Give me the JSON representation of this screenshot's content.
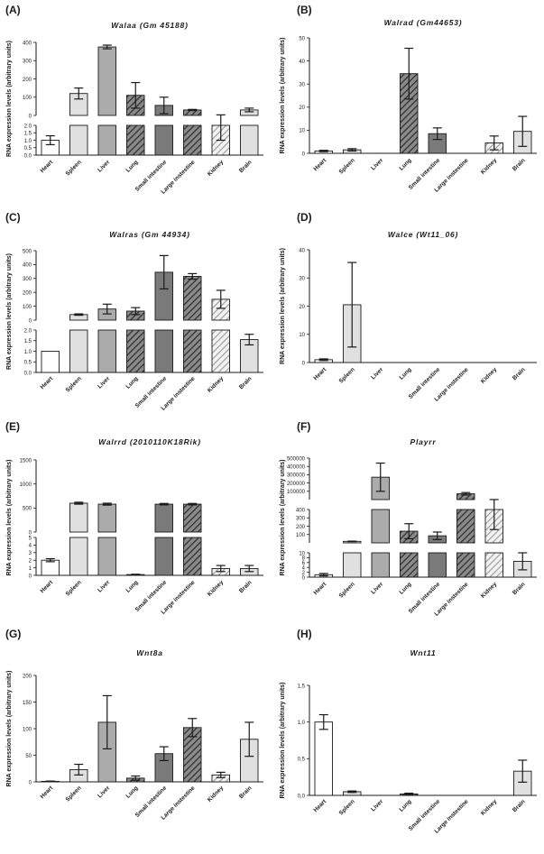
{
  "figure": {
    "panels": [
      "(A)",
      "(B)",
      "(C)",
      "(D)",
      "(E)",
      "(F)",
      "(G)",
      "(H)"
    ]
  },
  "chart_data": [
    {
      "panel": "(A)",
      "type": "bar",
      "title": "Walaa (Gm 45188)",
      "ylabel": "RNA expression levels (arbitrary units)",
      "categories": [
        "Heart",
        "Spleen",
        "Liver",
        "Lung",
        "Small intestine",
        "Large instestine",
        "Kidney",
        "Brain"
      ],
      "values": [
        1.0,
        120,
        375,
        110,
        55,
        30,
        2,
        30
      ],
      "errors": [
        0.3,
        30,
        10,
        70,
        45,
        3,
        1,
        10
      ],
      "patterns": [
        "white",
        "light",
        "mid",
        "hatch",
        "dark",
        "hatch",
        "hatchlight",
        "light"
      ],
      "axis_break": true,
      "upper": {
        "range": [
          0,
          400
        ],
        "ticks": [
          "0",
          "100",
          "200",
          "300",
          "400"
        ]
      },
      "lower": {
        "range": [
          0,
          2.0
        ],
        "ticks": [
          "0.0",
          "0.5",
          "1.0",
          "1.5",
          "2.0"
        ]
      }
    },
    {
      "panel": "(B)",
      "type": "bar",
      "title": "Walrad (Gm44653)",
      "ylabel": "RNA expression levels (arbitrary units)",
      "categories": [
        "Heart",
        "Spleen",
        "Liver",
        "Lung",
        "Small intestine",
        "Large instestine",
        "Kidney",
        "Brain"
      ],
      "values": [
        1.0,
        1.5,
        0,
        34.5,
        8.5,
        0,
        4.5,
        9.5
      ],
      "errors": [
        0.3,
        0.5,
        0,
        11,
        2.5,
        0,
        3,
        6.5
      ],
      "patterns": [
        "white",
        "light",
        "mid",
        "hatch",
        "dark",
        "hatch",
        "hatchlight",
        "light"
      ],
      "axis_break": false,
      "ylim": [
        0,
        50
      ],
      "yticks": [
        "0",
        "10",
        "20",
        "30",
        "40",
        "50"
      ]
    },
    {
      "panel": "(C)",
      "type": "bar",
      "title": "Walras (Gm 44934)",
      "ylabel": "RNA expression levels (arbitrary units)",
      "categories": [
        "Heart",
        "Spleen",
        "Liver",
        "Lung",
        "Small intestine",
        "Large instestine",
        "Kidney",
        "Brain"
      ],
      "values": [
        1.0,
        40,
        80,
        65,
        345,
        315,
        150,
        1.55
      ],
      "errors": [
        0,
        5,
        35,
        25,
        120,
        20,
        65,
        0.25
      ],
      "patterns": [
        "white",
        "light",
        "mid",
        "hatch",
        "dark",
        "hatch",
        "hatchlight",
        "light"
      ],
      "axis_break": true,
      "upper": {
        "range": [
          0,
          500
        ],
        "ticks": [
          "0",
          "100",
          "200",
          "300",
          "400",
          "500"
        ]
      },
      "lower": {
        "range": [
          0,
          2.0
        ],
        "ticks": [
          "0.0",
          "0.5",
          "1.0",
          "1.5",
          "2.0"
        ]
      }
    },
    {
      "panel": "(D)",
      "type": "bar",
      "title": "Walce (Wt11_06)",
      "ylabel": "RNA expression levels (arbitrary units)",
      "categories": [
        "Heart",
        "Spleen",
        "Liver",
        "Lung",
        "Small intestine",
        "Large instestine",
        "Kidney",
        "Brain"
      ],
      "values": [
        1.0,
        20.5,
        0,
        0,
        0,
        0,
        0,
        0
      ],
      "errors": [
        0.3,
        15,
        0,
        0,
        0,
        0,
        0,
        0
      ],
      "patterns": [
        "white",
        "light",
        "mid",
        "hatch",
        "dark",
        "hatch",
        "hatchlight",
        "light"
      ],
      "axis_break": false,
      "ylim": [
        0,
        40
      ],
      "yticks": [
        "0",
        "10",
        "20",
        "30",
        "40"
      ]
    },
    {
      "panel": "(E)",
      "type": "bar",
      "title": "Walrrd (2010110K18Rik)",
      "ylabel": "RNA expression levels (arbitrary units)",
      "categories": [
        "Heart",
        "Spleen",
        "Liver",
        "Lung",
        "Small intestine",
        "Large instestine",
        "Kidney",
        "Brain"
      ],
      "values": [
        2.0,
        600,
        580,
        0.1,
        580,
        580,
        0.9,
        0.9
      ],
      "errors": [
        0.2,
        20,
        20,
        0.05,
        15,
        15,
        0.4,
        0.4
      ],
      "patterns": [
        "white",
        "light",
        "mid",
        "hatch",
        "dark",
        "hatch",
        "hatchlight",
        "light"
      ],
      "axis_break": true,
      "upper": {
        "range": [
          0,
          1500
        ],
        "ticks": [
          "0",
          "500",
          "1000",
          "1500"
        ]
      },
      "lower": {
        "range": [
          0,
          5
        ],
        "ticks": [
          "0",
          "1",
          "2",
          "3",
          "4",
          "5"
        ]
      }
    },
    {
      "panel": "(F)",
      "type": "bar",
      "title": "Playrr",
      "ylabel": "RNA expression levels (arbitrary units)",
      "categories": [
        "Heart",
        "Spleen",
        "Liver",
        "Lung",
        "Small intestine",
        "Large instestine",
        "Kidney",
        "Brain"
      ],
      "values": [
        1.0,
        18,
        270000,
        140,
        85,
        70000,
        400,
        6.5
      ],
      "errors": [
        0.5,
        3,
        170000,
        90,
        45,
        15000,
        240,
        3.5
      ],
      "patterns": [
        "white",
        "light",
        "mid",
        "hatch",
        "dark",
        "hatch",
        "hatchlight",
        "light"
      ],
      "axis_break": true,
      "upper": {
        "range": [
          0,
          500000
        ],
        "ticks": [
          "100000",
          "200000",
          "300000",
          "400000",
          "500000"
        ]
      },
      "middle": {
        "range": [
          0,
          400
        ],
        "ticks": [
          "100",
          "200",
          "300",
          "400"
        ]
      },
      "lower": {
        "range": [
          0,
          10
        ],
        "ticks": [
          "0",
          "2",
          "4",
          "6",
          "8",
          "10"
        ]
      }
    },
    {
      "panel": "(G)",
      "type": "bar",
      "title": "Wnt8a",
      "ylabel": "RNA expression levels (arbitrary units)",
      "categories": [
        "Heart",
        "Spleen",
        "Liver",
        "Lung",
        "Small intestine",
        "Large instestine",
        "Kidney",
        "Brain"
      ],
      "values": [
        1,
        23,
        112,
        7,
        53,
        102,
        13,
        80
      ],
      "errors": [
        0.5,
        10,
        50,
        4,
        13,
        17,
        5,
        32
      ],
      "patterns": [
        "white",
        "light",
        "mid",
        "hatch",
        "dark",
        "hatch",
        "hatchlight",
        "light"
      ],
      "axis_break": false,
      "ylim": [
        0,
        200
      ],
      "yticks": [
        "0",
        "50",
        "100",
        "150",
        "200"
      ]
    },
    {
      "panel": "(H)",
      "type": "bar",
      "title": "Wnt11",
      "ylabel": "RNA expression levels (arbitrary units)",
      "categories": [
        "Heart",
        "Spleen",
        "Liver",
        "Lung",
        "Small intestine",
        "Large instestine",
        "Kidney",
        "Brain"
      ],
      "values": [
        1.0,
        0.05,
        0,
        0.02,
        0,
        0,
        0,
        0.33
      ],
      "errors": [
        0.1,
        0.01,
        0,
        0.01,
        0,
        0,
        0,
        0.15
      ],
      "patterns": [
        "white",
        "light",
        "mid",
        "hatch",
        "dark",
        "hatch",
        "hatchlight",
        "light"
      ],
      "axis_break": false,
      "ylim": [
        0,
        1.5
      ],
      "yticks": [
        "0,0",
        "0,5",
        "1,0",
        "1,5"
      ]
    }
  ]
}
